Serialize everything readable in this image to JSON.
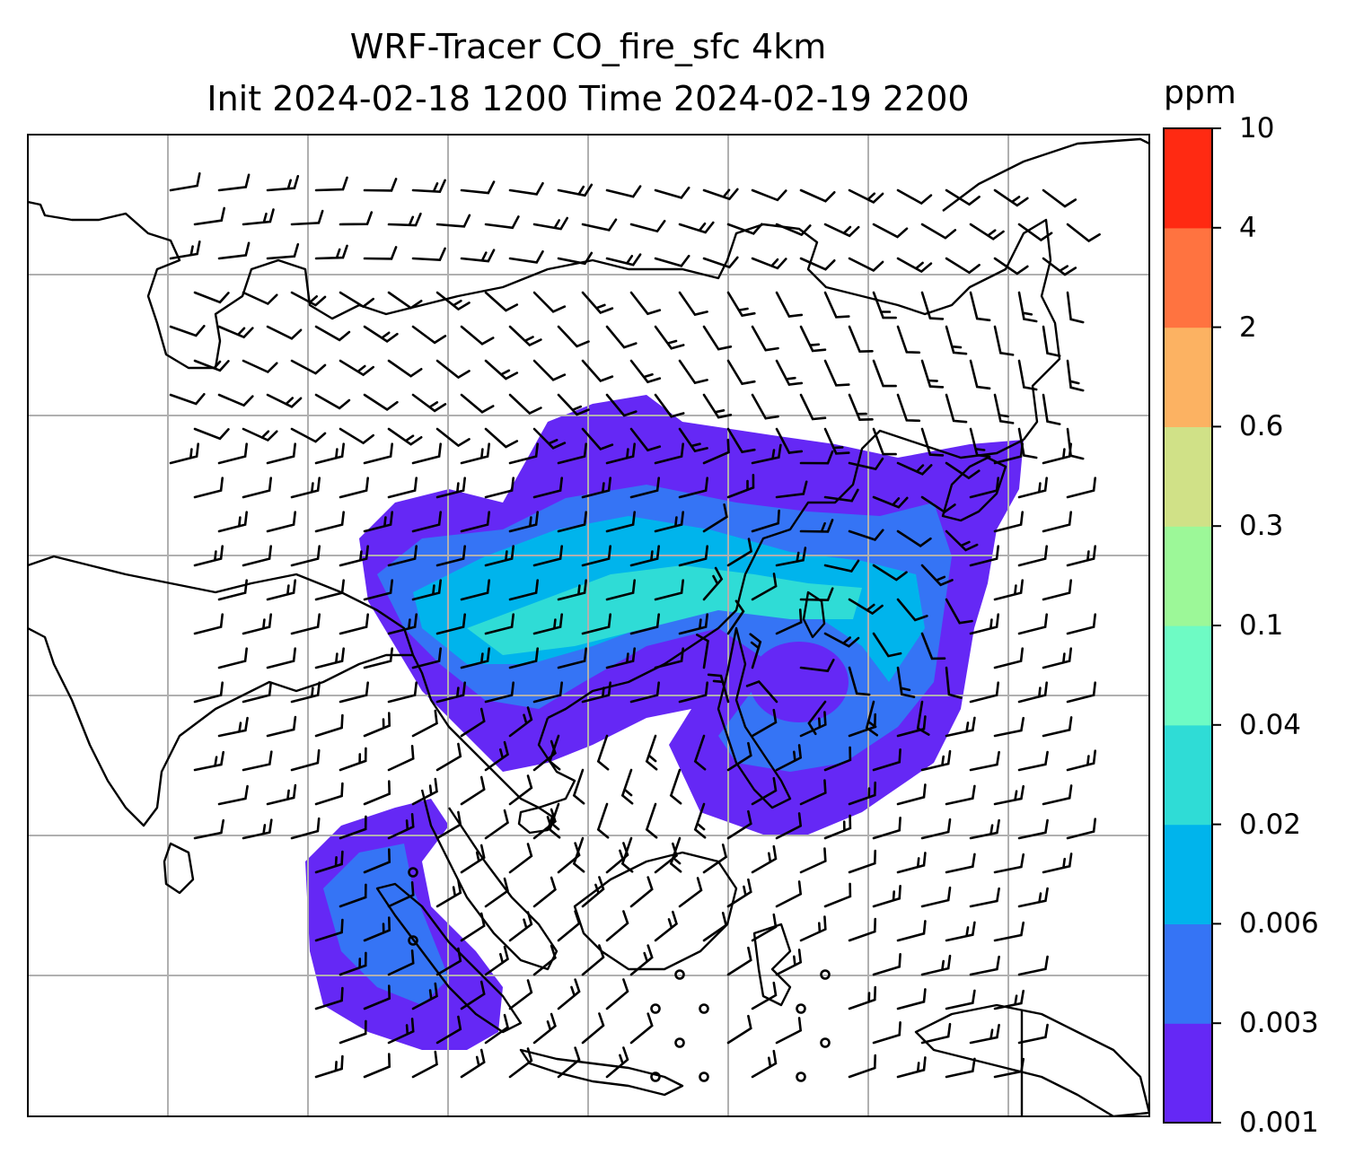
{
  "title": {
    "line1": "WRF-Tracer CO_fire_sfc 4km",
    "line2": "Init 2024-02-18 1200 Time 2024-02-19 2200"
  },
  "colorbar": {
    "unit": "ppm",
    "levels": [
      "0.001",
      "0.003",
      "0.006",
      "0.02",
      "0.04",
      "0.1",
      "0.3",
      "0.6",
      "2",
      "4",
      "10"
    ],
    "colors": [
      "#6528f5",
      "#3574f5",
      "#00b4ec",
      "#2fdcd6",
      "#6efbc4",
      "#9cf898",
      "#d0e187",
      "#fcb262",
      "#ff7340",
      "#ff2a12"
    ]
  },
  "map": {
    "gridline_color": "#b0b0b0",
    "coastline_color": "#000000"
  }
}
